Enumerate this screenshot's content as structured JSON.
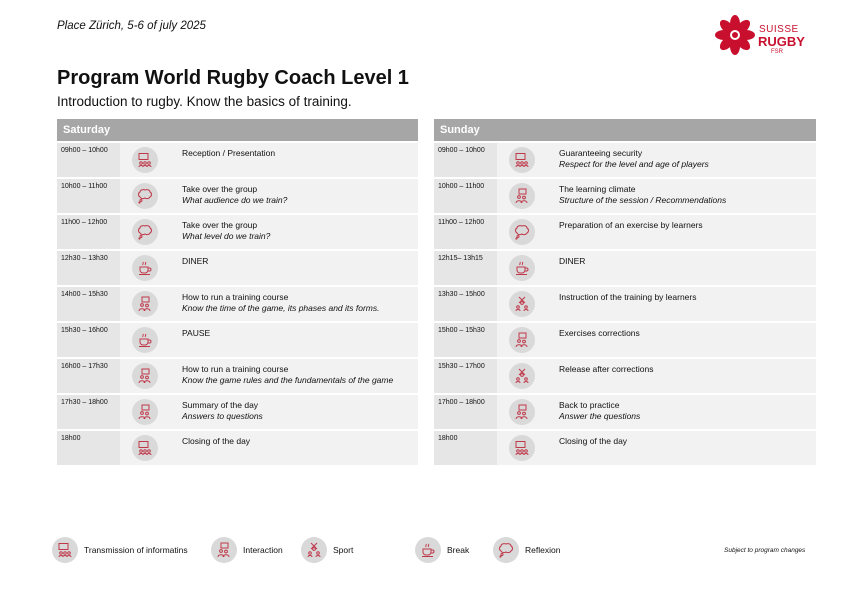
{
  "header": {
    "place": "Place Zürich, 5-6 of july 2025",
    "title": "Program World Rugby Coach Level 1",
    "subtitle": "Introduction to rugby. Know the basics of training.",
    "logo": {
      "line1": "SUISSE",
      "line2": "RUGBY",
      "line3": "FSR",
      "color": "#c8102e"
    }
  },
  "saturday": {
    "label": "Saturday",
    "rows": [
      {
        "time": "09h00 – 10h00",
        "icon": "transmission-icon",
        "title": "Reception / Presentation",
        "sub": ""
      },
      {
        "time": "10h00 – 11h00",
        "icon": "reflexion-icon",
        "title": "Take over the group",
        "sub": "What audience do we train?"
      },
      {
        "time": "11h00 – 12h00",
        "icon": "reflexion-icon",
        "title": "Take over the group",
        "sub": "What level do we train?"
      },
      {
        "time": "12h30 – 13h30",
        "icon": "break-icon",
        "title": "DINER",
        "sub": ""
      },
      {
        "time": "14h00 – 15h30",
        "icon": "interaction-icon",
        "title": "How to run a training course",
        "sub": "Know the time of the game, its phases and its forms."
      },
      {
        "time": "15h30 – 16h00",
        "icon": "break-icon",
        "title": "PAUSE",
        "sub": ""
      },
      {
        "time": "16h00 – 17h30",
        "icon": "interaction-icon",
        "title": "How to run a training course",
        "sub": "Know the game rules and the fundamentals of the game"
      },
      {
        "time": "17h30 – 18h00",
        "icon": "interaction-icon",
        "title": "Summary of the day",
        "sub": "Answers to questions"
      },
      {
        "time": "18h00",
        "icon": "transmission-icon",
        "title": "Closing of the day",
        "sub": ""
      }
    ]
  },
  "sunday": {
    "label": "Sunday",
    "rows": [
      {
        "time": "09h00 – 10h00",
        "icon": "transmission-icon",
        "title": "Guaranteeing security",
        "sub": "Respect for the level and age of players"
      },
      {
        "time": "10h00 – 11h00",
        "icon": "interaction-icon",
        "title": "The learning climate",
        "sub": "Structure of the session / Recommendations"
      },
      {
        "time": "11h00 – 12h00",
        "icon": "reflexion-icon",
        "title": "Preparation of an exercise by learners",
        "sub": ""
      },
      {
        "time": "12h15– 13h15",
        "icon": "break-icon",
        "title": "DINER",
        "sub": ""
      },
      {
        "time": "13h30 – 15h00",
        "icon": "sport-icon",
        "title": "Instruction of the training by learners",
        "sub": ""
      },
      {
        "time": "15h00 – 15h30",
        "icon": "interaction-icon",
        "title": "Exercises corrections",
        "sub": ""
      },
      {
        "time": "15h30 – 17h00",
        "icon": "sport-icon",
        "title": "Release after corrections",
        "sub": ""
      },
      {
        "time": "17h00 – 18h00",
        "icon": "interaction-icon",
        "title": "Back to practice",
        "sub": "Answer the questions"
      },
      {
        "time": "18h00",
        "icon": "transmission-icon",
        "title": "Closing of the day",
        "sub": ""
      }
    ]
  },
  "legend": {
    "transmission": "Transmission of informatins",
    "interaction": "Interaction",
    "sport": "Sport",
    "break": "Break",
    "reflexion": "Reflexion",
    "note": "Subject to program changes"
  },
  "colors": {
    "icon_stroke": "#c0394b",
    "header_bg": "#a6a6a6"
  }
}
